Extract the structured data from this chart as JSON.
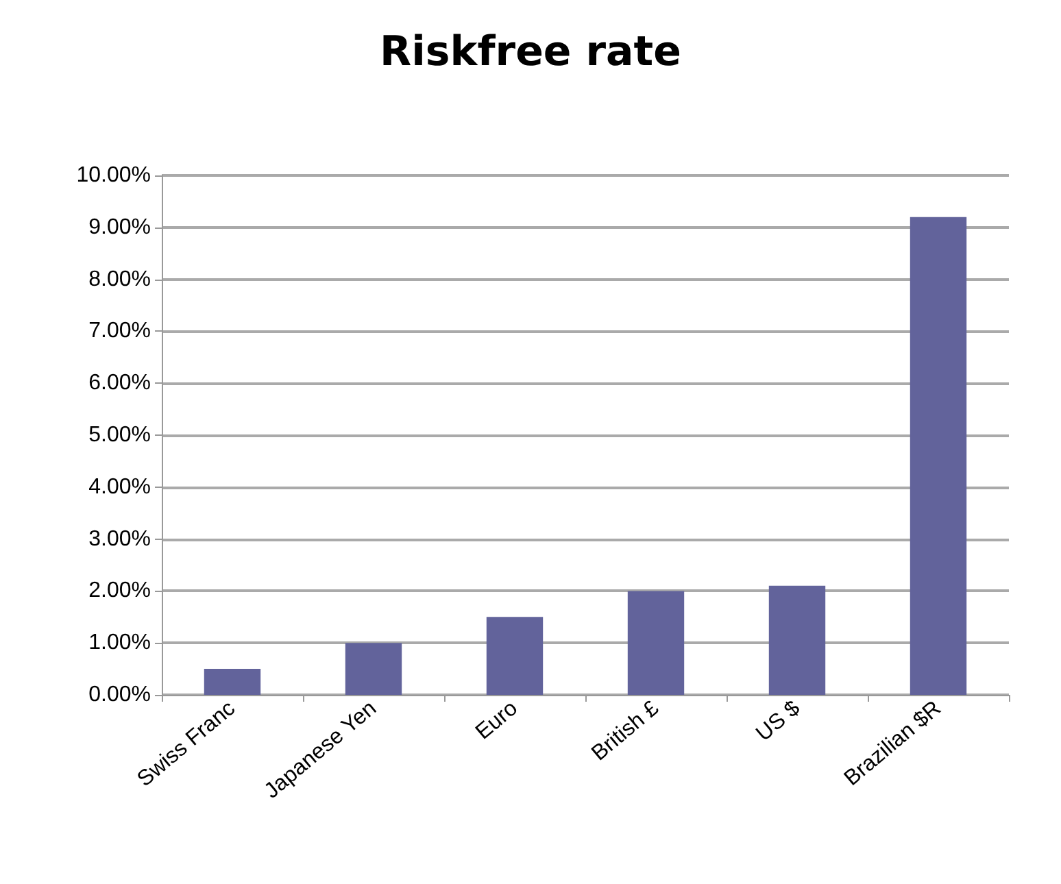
{
  "chart_data": {
    "type": "bar",
    "title": "Riskfree rate",
    "categories": [
      "Swiss Franc",
      "Japanese Yen",
      "Euro",
      "British £",
      "US $",
      "Brazilian $R"
    ],
    "values": [
      0.5,
      1.0,
      1.5,
      2.0,
      2.1,
      9.2
    ],
    "color": "#62639b",
    "ylim": [
      0,
      10
    ],
    "yticks": [
      {
        "value": 0,
        "label": "0.00%"
      },
      {
        "value": 1,
        "label": "1.00%"
      },
      {
        "value": 2,
        "label": "2.00%"
      },
      {
        "value": 3,
        "label": "3.00%"
      },
      {
        "value": 4,
        "label": "4.00%"
      },
      {
        "value": 5,
        "label": "5.00%"
      },
      {
        "value": 6,
        "label": "6.00%"
      },
      {
        "value": 7,
        "label": "7.00%"
      },
      {
        "value": 8,
        "label": "8.00%"
      },
      {
        "value": 9,
        "label": "9.00%"
      },
      {
        "value": 10,
        "label": "10.00%"
      }
    ],
    "grid": "y"
  }
}
